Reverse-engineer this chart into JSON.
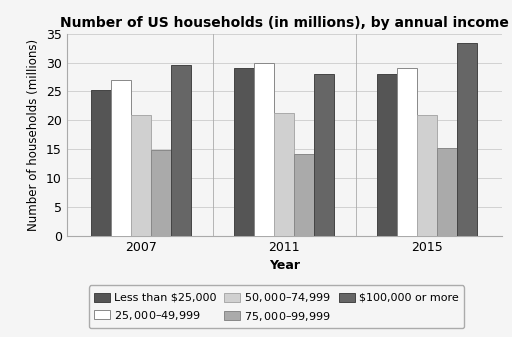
{
  "title": "Number of US households (in millions), by annual income",
  "xlabel": "Year",
  "ylabel": "Number of households (millions)",
  "years": [
    "2007",
    "2011",
    "2015"
  ],
  "categories": [
    "Less than $25,000",
    "$25,000–$49,999",
    "$50,000–$74,999",
    "$75,000–$99,999",
    "$100,000 or more"
  ],
  "values": {
    "2007": [
      25.3,
      27.0,
      21.0,
      14.8,
      29.5
    ],
    "2011": [
      29.0,
      30.0,
      21.2,
      14.2,
      28.0
    ],
    "2015": [
      28.1,
      29.0,
      21.0,
      15.3,
      33.4
    ]
  },
  "colors": [
    "#555555",
    "#ffffff",
    "#d0d0d0",
    "#aaaaaa",
    "#666666"
  ],
  "bar_edge_colors": [
    "#444444",
    "#888888",
    "#aaaaaa",
    "#888888",
    "#444444"
  ],
  "ylim": [
    0,
    35
  ],
  "yticks": [
    0,
    5,
    10,
    15,
    20,
    25,
    30,
    35
  ],
  "background_color": "#f5f5f5",
  "title_fontsize": 10,
  "axis_label_fontsize": 9,
  "tick_fontsize": 9,
  "legend_fontsize": 8
}
